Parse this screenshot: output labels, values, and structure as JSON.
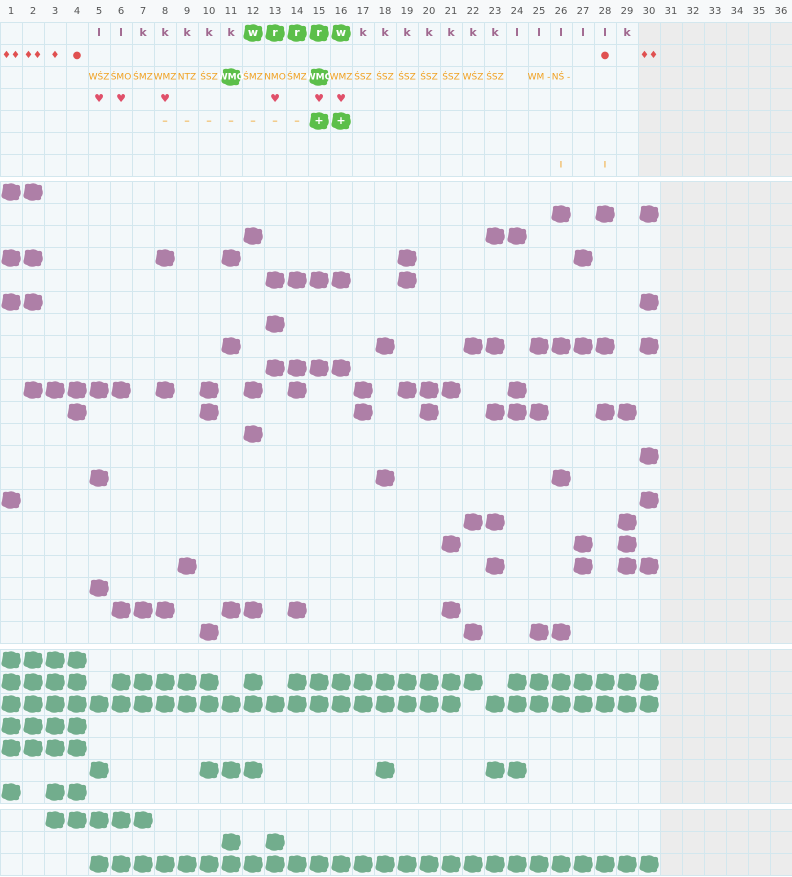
{
  "columns": [
    "1",
    "2",
    "3",
    "4",
    "5",
    "6",
    "7",
    "8",
    "9",
    "10",
    "11",
    "12",
    "13",
    "14",
    "15",
    "16",
    "17",
    "18",
    "19",
    "20",
    "21",
    "22",
    "23",
    "24",
    "25",
    "26",
    "27",
    "28",
    "29",
    "30",
    "31",
    "32",
    "33",
    "34",
    "35",
    "36"
  ],
  "top": {
    "rows": [
      {
        "kind": "letter",
        "cells": {
          "5": "l",
          "6": "l",
          "7": "k",
          "8": "k",
          "9": "k",
          "10": "k",
          "11": "k",
          "12": {
            "text": "w",
            "badge": true
          },
          "13": {
            "text": "r",
            "badge": true
          },
          "14": {
            "text": "r",
            "badge": true
          },
          "15": {
            "text": "r",
            "badge": true
          },
          "16": {
            "text": "w",
            "badge": true
          },
          "17": "k",
          "18": "k",
          "19": "k",
          "20": "k",
          "21": "k",
          "22": "k",
          "23": "k",
          "24": "l",
          "25": "l",
          "26": "l",
          "27": "l",
          "28": "l",
          "29": "k"
        }
      },
      {
        "kind": "symbol",
        "cells": {
          "1": "♦♦",
          "2": "♦♦",
          "3": "♦",
          "4": "●",
          "28": "●",
          "30": "♦♦"
        }
      },
      {
        "kind": "label",
        "cells": {
          "5": "WŚZ",
          "6": "ŚMO",
          "7": "ŚMZ",
          "8": "WMZ",
          "9": "NTZ",
          "10": "ŚSZ",
          "11": {
            "text": "WMO",
            "badge": true
          },
          "12": "ŚMZ",
          "13": "NMO",
          "14": "ŚMZ",
          "15": {
            "text": "WMO",
            "badge": true
          },
          "16": "WMZ",
          "17": "ŚSZ",
          "18": "ŚSZ",
          "19": "ŚSZ",
          "20": "ŚSZ",
          "21": "ŚSZ",
          "22": "WŚZ",
          "23": "ŚSZ",
          "25": "WM -",
          "26": "NŚ -"
        }
      },
      {
        "kind": "heart",
        "cells": {
          "5": "♥",
          "6": "♥",
          "8": "♥",
          "13": "♥",
          "15": "♥",
          "16": "♥"
        }
      },
      {
        "kind": "dash",
        "cells": {
          "8": "–",
          "9": "–",
          "10": "–",
          "11": "–",
          "12": "–",
          "13": "–",
          "14": "–",
          "15": {
            "text": "+",
            "badge": true
          },
          "16": {
            "text": "+",
            "badge": true
          }
        }
      },
      {
        "kind": "empty",
        "cells": {}
      },
      {
        "kind": "tick",
        "cells": {
          "26": "I",
          "28": "I"
        }
      }
    ]
  },
  "purple": [
    [
      1,
      2
    ],
    [
      26,
      28,
      30
    ],
    [
      12,
      23,
      24
    ],
    [
      1,
      2,
      8,
      11,
      19,
      27
    ],
    [
      13,
      14,
      15,
      16,
      19
    ],
    [
      1,
      2,
      30
    ],
    [
      13
    ],
    [
      11,
      18,
      22,
      23,
      25,
      26,
      27,
      28,
      30
    ],
    [
      13,
      14,
      15,
      16
    ],
    [
      2,
      3,
      4,
      5,
      6,
      8,
      10,
      12,
      14,
      17,
      19,
      20,
      21,
      24
    ],
    [
      4,
      10,
      17,
      20,
      23,
      24,
      25,
      28,
      29
    ],
    [
      12
    ],
    [
      30
    ],
    [
      5,
      18,
      26
    ],
    [
      1,
      30
    ],
    [
      22,
      23,
      29
    ],
    [
      21,
      27,
      29
    ],
    [
      9,
      23,
      27,
      29,
      30
    ],
    [
      5
    ],
    [
      6,
      7,
      8,
      11,
      12,
      14,
      21
    ],
    [
      10,
      22,
      25,
      26
    ]
  ],
  "green": [
    [
      1,
      2,
      3,
      4
    ],
    [
      1,
      2,
      3,
      4,
      6,
      7,
      8,
      9,
      10,
      12,
      14,
      15,
      16,
      17,
      18,
      19,
      20,
      21,
      22,
      24,
      25,
      26,
      27,
      28,
      29,
      30
    ],
    [
      1,
      2,
      3,
      4,
      5,
      6,
      7,
      8,
      9,
      10,
      11,
      12,
      13,
      14,
      15,
      16,
      17,
      18,
      19,
      20,
      21,
      23,
      24,
      25,
      26,
      27,
      28,
      29,
      30
    ],
    [
      1,
      2,
      3,
      4
    ],
    [
      1,
      2,
      3,
      4
    ],
    [
      5,
      10,
      11,
      12,
      18,
      23,
      24
    ],
    [
      1,
      3,
      4
    ]
  ],
  "bottom": [
    [
      3,
      4,
      5,
      6,
      7
    ],
    [
      11,
      13
    ],
    [
      5,
      6,
      7,
      8,
      9,
      10,
      11,
      12,
      13,
      14,
      15,
      16,
      17,
      18,
      19,
      20,
      21,
      22,
      23,
      24,
      25,
      26,
      27,
      28,
      29,
      30
    ]
  ]
}
